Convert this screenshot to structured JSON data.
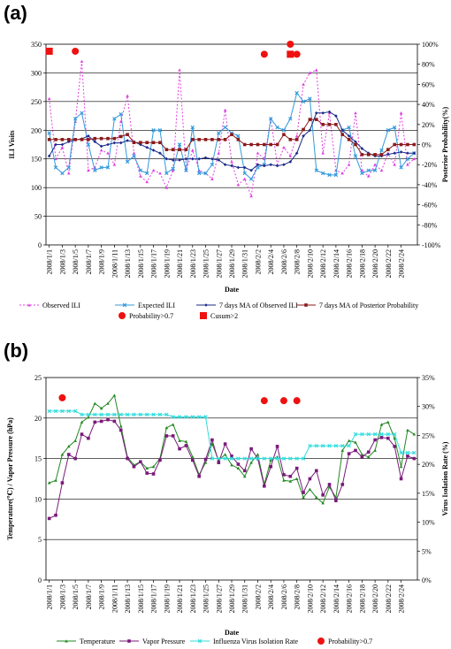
{
  "chart_data": [
    {
      "panel_label": "(a)",
      "type": "line",
      "xlabel": "Date",
      "ylabel_left": "ILI Visits",
      "ylabel_right": "Posterior Probability(%)",
      "ylim_left": [
        0,
        350
      ],
      "ylim_right": [
        -100,
        100
      ],
      "yticks_left": [
        "0",
        "50",
        "100",
        "150",
        "200",
        "250",
        "300",
        "350"
      ],
      "yticks_right": [
        "-100%",
        "-80%",
        "-60%",
        "-40%",
        "-20%",
        "0%",
        "20%",
        "40%",
        "60%",
        "80%",
        "100%"
      ],
      "grid": true,
      "x_dates": [
        "2008/1/1",
        "2008/1/2",
        "2008/1/3",
        "2008/1/4",
        "2008/1/5",
        "2008/1/6",
        "2008/1/7",
        "2008/1/8",
        "2008/1/9",
        "2008/1/10",
        "2008/1/11",
        "2008/1/12",
        "2008/1/13",
        "2008/1/14",
        "2008/1/15",
        "2008/1/16",
        "2008/1/17",
        "2008/1/18",
        "2008/1/19",
        "2008/1/20",
        "2008/1/21",
        "2008/1/22",
        "2008/1/23",
        "2008/1/24",
        "2008/1/25",
        "2008/1/26",
        "2008/1/27",
        "2008/1/28",
        "2008/1/29",
        "2008/1/30",
        "2008/1/31",
        "2008/2/1",
        "2008/2/2",
        "2008/2/3",
        "2008/2/4",
        "2008/2/5",
        "2008/2/6",
        "2008/2/7",
        "2008/2/8",
        "2008/2/9",
        "2008/2/10",
        "2008/2/11",
        "2008/2/12",
        "2008/2/13",
        "2008/2/14",
        "2008/2/15",
        "2008/2/16",
        "2008/2/17",
        "2008/2/18",
        "2008/2/19",
        "2008/2/20",
        "2008/2/21",
        "2008/2/22",
        "2008/2/23",
        "2008/2/24",
        "2008/2/25",
        "2008/2/26"
      ],
      "x_tick_labels": [
        "2008/1/1",
        "2008/1/3",
        "2008/1/5",
        "2008/1/7",
        "2008/1/9",
        "2008/1/11",
        "2008/1/13",
        "2008/1/15",
        "2008/1/17",
        "2008/1/19",
        "2008/1/21",
        "2008/1/23",
        "2008/1/25",
        "2008/1/27",
        "2008/1/29",
        "2008/1/31",
        "2008/2/2",
        "2008/2/4",
        "2008/2/6",
        "2008/2/8",
        "2008/2/10",
        "2008/2/12",
        "2008/2/14",
        "2008/2/16",
        "2008/2/18",
        "2008/2/20",
        "2008/2/22",
        "2008/2/24"
      ],
      "series": [
        {
          "name": "Observed ILI",
          "axis": "left",
          "color": "#e040e0",
          "values": [
            255,
            150,
            170,
            125,
            215,
            320,
            130,
            135,
            165,
            160,
            140,
            215,
            260,
            160,
            120,
            110,
            130,
            125,
            100,
            130,
            305,
            130,
            165,
            130,
            125,
            115,
            160,
            235,
            145,
            105,
            115,
            85,
            160,
            150,
            220,
            140,
            170,
            155,
            190,
            280,
            300,
            305,
            160,
            230,
            130,
            125,
            140,
            230,
            130,
            120,
            140,
            130,
            160,
            140,
            230,
            140,
            150
          ]
        },
        {
          "name": "Expected ILI",
          "axis": "left",
          "color": "#3399dd",
          "values": [
            195,
            135,
            125,
            135,
            220,
            230,
            175,
            130,
            135,
            135,
            220,
            228,
            145,
            155,
            130,
            125,
            200,
            200,
            125,
            133,
            175,
            130,
            205,
            125,
            125,
            140,
            195,
            205,
            195,
            190,
            125,
            115,
            135,
            140,
            220,
            205,
            200,
            220,
            265,
            250,
            255,
            130,
            125,
            122,
            122,
            200,
            205,
            155,
            125,
            130,
            130,
            165,
            200,
            205,
            135,
            150,
            160
          ]
        },
        {
          "name": "7 days MA of Observed ILI",
          "axis": "left",
          "color": "#1a2a88",
          "values": [
            155,
            175,
            175,
            180,
            183,
            185,
            190,
            180,
            172,
            175,
            178,
            178,
            182,
            180,
            175,
            170,
            165,
            160,
            150,
            148,
            148,
            150,
            150,
            150,
            152,
            150,
            148,
            140,
            138,
            135,
            135,
            130,
            140,
            138,
            140,
            138,
            140,
            145,
            160,
            190,
            200,
            230,
            230,
            232,
            225,
            200,
            190,
            180,
            168,
            160,
            155,
            155,
            158,
            160,
            162,
            160,
            160
          ]
        },
        {
          "name": "7 days MA of Posterior Probability",
          "axis": "right",
          "color": "#8b1a1a",
          "values": [
            5,
            5,
            5,
            5,
            5,
            5,
            5,
            6,
            6,
            6,
            6,
            8,
            10,
            2,
            2,
            2,
            2,
            2,
            -5,
            -5,
            -5,
            -5,
            5,
            5,
            5,
            5,
            5,
            5,
            10,
            5,
            0,
            0,
            0,
            0,
            0,
            0,
            10,
            5,
            5,
            15,
            25,
            25,
            20,
            20,
            20,
            10,
            5,
            0,
            -10,
            -10,
            -10,
            -10,
            -5,
            0,
            0,
            0,
            0
          ]
        }
      ],
      "markers": [
        {
          "name": "Probability>0.7",
          "shape": "circle",
          "color": "#ee1111",
          "points": [
            {
              "x": "2008/1/5",
              "y": 93
            },
            {
              "x": "2008/2/3",
              "y": 90
            },
            {
              "x": "2008/2/7",
              "y": 100
            },
            {
              "x": "2008/2/8",
              "y": 90
            }
          ]
        },
        {
          "name": "Cusum>2",
          "shape": "square",
          "color": "#ee1111",
          "points": [
            {
              "x": "2008/1/1",
              "y": 93
            },
            {
              "x": "2008/2/7",
              "y": 90
            }
          ]
        }
      ]
    },
    {
      "panel_label": "(b)",
      "type": "line",
      "xlabel": "Date",
      "ylabel_left": "Temperature(℃) / Vapor Pressure (hPa)",
      "ylabel_right": "Virus Isolation Rate (%)",
      "ylim_left": [
        0,
        25
      ],
      "ylim_right": [
        0,
        35
      ],
      "yticks_left": [
        "0",
        "5",
        "10",
        "15",
        "20",
        "25"
      ],
      "yticks_right": [
        "0%",
        "5%",
        "10%",
        "15%",
        "20%",
        "25%",
        "30%",
        "35%"
      ],
      "grid": true,
      "x_dates": [
        "2008/1/1",
        "2008/1/2",
        "2008/1/3",
        "2008/1/4",
        "2008/1/5",
        "2008/1/6",
        "2008/1/7",
        "2008/1/8",
        "2008/1/9",
        "2008/1/10",
        "2008/1/11",
        "2008/1/12",
        "2008/1/13",
        "2008/1/14",
        "2008/1/15",
        "2008/1/16",
        "2008/1/17",
        "2008/1/18",
        "2008/1/19",
        "2008/1/20",
        "2008/1/21",
        "2008/1/22",
        "2008/1/23",
        "2008/1/24",
        "2008/1/25",
        "2008/1/26",
        "2008/1/27",
        "2008/1/28",
        "2008/1/29",
        "2008/1/30",
        "2008/1/31",
        "2008/2/1",
        "2008/2/2",
        "2008/2/3",
        "2008/2/4",
        "2008/2/5",
        "2008/2/6",
        "2008/2/7",
        "2008/2/8",
        "2008/2/9",
        "2008/2/10",
        "2008/2/11",
        "2008/2/12",
        "2008/2/13",
        "2008/2/14",
        "2008/2/15",
        "2008/2/16",
        "2008/2/17",
        "2008/2/18",
        "2008/2/19",
        "2008/2/20",
        "2008/2/21",
        "2008/2/22",
        "2008/2/23",
        "2008/2/24",
        "2008/2/25",
        "2008/2/26"
      ],
      "x_tick_labels": [
        "2008/1/1",
        "2008/1/3",
        "2008/1/5",
        "2008/1/7",
        "2008/1/9",
        "2008/1/11",
        "2008/1/13",
        "2008/1/15",
        "2008/1/17",
        "2008/1/19",
        "2008/1/21",
        "2008/1/23",
        "2008/1/25",
        "2008/1/27",
        "2008/1/29",
        "2008/1/31",
        "2008/2/2",
        "2008/2/4",
        "2008/2/6",
        "2008/2/8",
        "2008/2/10",
        "2008/2/12",
        "2008/2/14",
        "2008/2/16",
        "2008/2/18",
        "2008/2/20",
        "2008/2/22",
        "2008/2/24"
      ],
      "series": [
        {
          "name": "Temperature",
          "axis": "left",
          "color": "#228822",
          "values": [
            12.0,
            12.3,
            15.5,
            16.5,
            17.2,
            19.5,
            20.1,
            21.8,
            21.2,
            21.8,
            22.8,
            19.0,
            15.2,
            14.2,
            14.6,
            13.8,
            14.0,
            15.0,
            18.8,
            19.2,
            17.2,
            17.1,
            15.2,
            13.0,
            14.5,
            16.8,
            14.8,
            15.5,
            14.2,
            13.8,
            12.8,
            14.5,
            15.5,
            11.8,
            14.8,
            15.2,
            12.3,
            12.2,
            12.5,
            10.2,
            11.2,
            10.2,
            9.5,
            11.5,
            10.2,
            16.0,
            17.2,
            17.0,
            15.5,
            15.2,
            16.0,
            19.2,
            19.5,
            17.5,
            14.0,
            18.5,
            18.0
          ]
        },
        {
          "name": "Vapor Pressure",
          "axis": "left",
          "color": "#7a1a7a",
          "values": [
            7.6,
            8.0,
            12.0,
            15.5,
            15.0,
            18.0,
            17.5,
            19.5,
            19.6,
            19.8,
            19.6,
            18.5,
            15.0,
            14.0,
            14.6,
            13.2,
            13.1,
            14.8,
            17.8,
            17.8,
            16.2,
            16.6,
            14.8,
            12.8,
            14.9,
            17.3,
            14.5,
            16.8,
            15.3,
            14.3,
            13.5,
            16.2,
            15.0,
            11.6,
            14.0,
            16.5,
            13.0,
            12.8,
            13.8,
            10.8,
            12.5,
            13.5,
            10.5,
            11.8,
            9.8,
            11.8,
            15.6,
            16.0,
            15.2,
            15.8,
            17.3,
            17.6,
            17.5,
            16.5,
            12.5,
            15.3,
            15.0
          ]
        },
        {
          "name": "Influenza Virus Isolation Rate",
          "axis": "right",
          "color": "#33dddd",
          "values": [
            29.2,
            29.2,
            29.2,
            29.2,
            29.2,
            28.6,
            28.6,
            28.6,
            28.6,
            28.6,
            28.6,
            28.6,
            28.6,
            28.6,
            28.6,
            28.6,
            28.6,
            28.6,
            28.6,
            28.2,
            28.2,
            28.2,
            28.2,
            28.2,
            28.2,
            21.0,
            21.0,
            21.0,
            21.0,
            21.0,
            21.0,
            21.0,
            21.0,
            21.0,
            21.0,
            21.0,
            21.0,
            21.0,
            21.0,
            21.0,
            23.2,
            23.2,
            23.2,
            23.2,
            23.2,
            23.2,
            23.2,
            25.2,
            25.2,
            25.2,
            25.2,
            25.2,
            25.2,
            25.2,
            22.0,
            22.0,
            22.0
          ]
        }
      ],
      "markers": [
        {
          "name": "Probability>0.7",
          "shape": "circle",
          "color": "#ee1111",
          "points": [
            {
              "x": "2008/1/3",
              "y": 31.5
            },
            {
              "x": "2008/2/3",
              "y": 31.0
            },
            {
              "x": "2008/2/6",
              "y": 31.0
            },
            {
              "x": "2008/2/8",
              "y": 31.0
            }
          ]
        }
      ]
    }
  ]
}
